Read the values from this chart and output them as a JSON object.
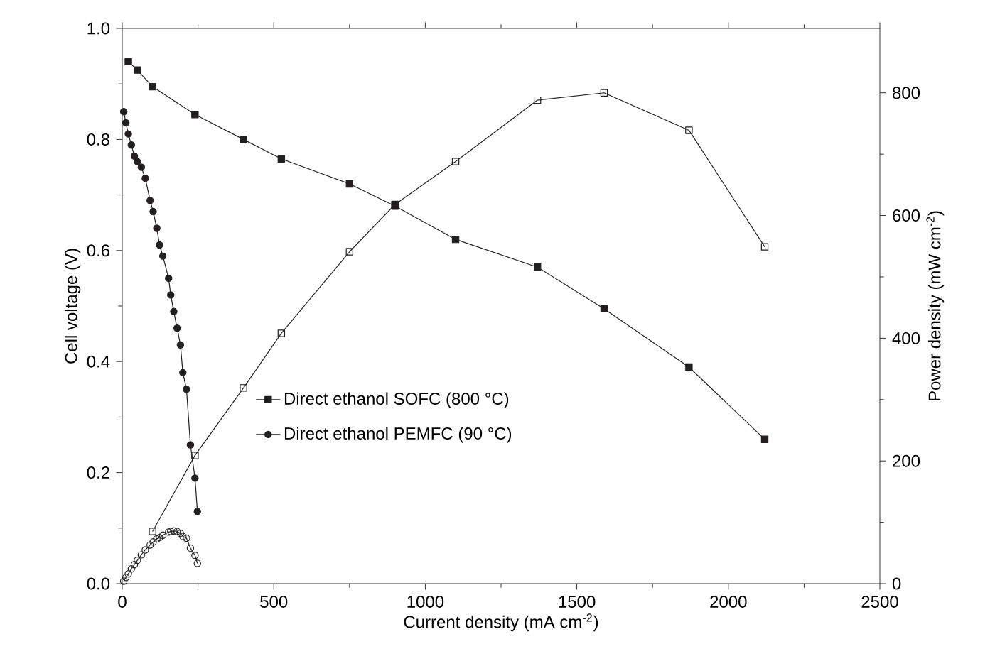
{
  "chart_data": {
    "type": "line",
    "xlabel": "Current density (mA cm$^{-2}$)",
    "ylabel": "Cell voltage (V)",
    "y2label": "Power density (mW cm$^{-2}$)",
    "xlim": [
      0,
      2500
    ],
    "xticks": [
      0,
      500,
      1000,
      1500,
      2000,
      2500
    ],
    "ylim": [
      0,
      1.0
    ],
    "yticks": [
      {
        "value": 0,
        "label": "0.0"
      },
      {
        "value": 0.2,
        "label": "0.2"
      },
      {
        "value": 0.4,
        "label": "0.4"
      },
      {
        "value": 0.6,
        "label": "0.6"
      },
      {
        "value": 0.8,
        "label": "0.8"
      },
      {
        "value": 1.0,
        "label": "1.0"
      }
    ],
    "y2lim": [
      0,
      905
    ],
    "y2ticks": [
      0,
      200,
      400,
      600,
      800
    ],
    "legend": "left",
    "grid": false,
    "series": [
      {
        "name": "Direct ethanol SOFC (800 °C)",
        "color": "#231f20",
        "marker": "square",
        "x": [
          20,
          50,
          100,
          240,
          400,
          525,
          750,
          900,
          1100,
          1370,
          1590,
          1870,
          2120
        ],
        "values": [
          0.94,
          0.925,
          0.895,
          0.845,
          0.8,
          0.765,
          0.72,
          0.68,
          0.62,
          0.57,
          0.495,
          0.39,
          0.26
        ]
      },
      {
        "color": "#231f20",
        "marker": "square",
        "axis": "y2",
        "x": [
          100,
          240,
          400,
          525,
          750,
          900,
          1100,
          1370,
          1590,
          1870,
          2120
        ],
        "values": [
          85,
          209,
          319,
          408,
          541,
          618,
          688,
          788,
          800,
          739,
          549
        ]
      },
      {
        "name": "Direct ethanol PEMFC (90 °C)",
        "color": "#231f20",
        "marker": "circle",
        "x": [
          5,
          12,
          20,
          30,
          40,
          50,
          63,
          76,
          92,
          102,
          114,
          123,
          134,
          153,
          160,
          170,
          181,
          192,
          200,
          212,
          225,
          240,
          248
        ],
        "values": [
          0.85,
          0.83,
          0.81,
          0.79,
          0.77,
          0.76,
          0.75,
          0.73,
          0.69,
          0.67,
          0.64,
          0.61,
          0.59,
          0.55,
          0.52,
          0.49,
          0.46,
          0.43,
          0.38,
          0.35,
          0.25,
          0.19,
          0.13
        ]
      },
      {
        "color": "#231f20",
        "marker": "circle",
        "axis": "y2",
        "x": [
          5,
          12,
          20,
          30,
          40,
          50,
          63,
          76,
          92,
          102,
          114,
          123,
          134,
          153,
          160,
          170,
          181,
          192,
          200,
          212,
          225,
          240,
          248
        ],
        "values": [
          4,
          10,
          16,
          24,
          31,
          38,
          47,
          55,
          63,
          68,
          73,
          75,
          79,
          84,
          85,
          86,
          85,
          82,
          77,
          74,
          58,
          46,
          33
        ]
      }
    ]
  }
}
